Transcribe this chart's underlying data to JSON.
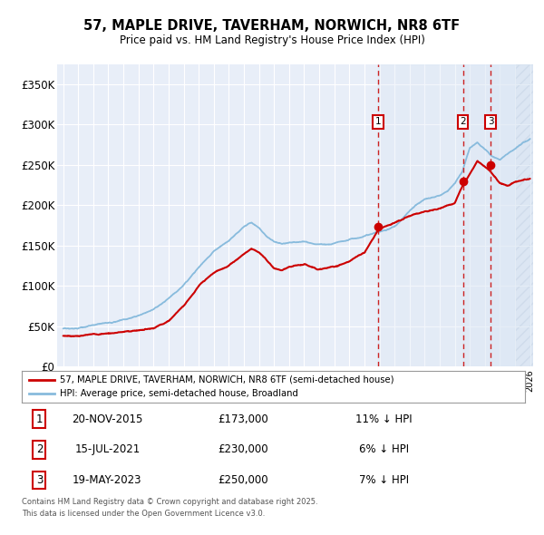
{
  "title": "57, MAPLE DRIVE, TAVERHAM, NORWICH, NR8 6TF",
  "subtitle": "Price paid vs. HM Land Registry's House Price Index (HPI)",
  "legend_line1": "57, MAPLE DRIVE, TAVERHAM, NORWICH, NR8 6TF (semi-detached house)",
  "legend_line2": "HPI: Average price, semi-detached house, Broadland",
  "footer1": "Contains HM Land Registry data © Crown copyright and database right 2025.",
  "footer2": "This data is licensed under the Open Government Licence v3.0.",
  "sale_color": "#cc0000",
  "hpi_color": "#88bbdd",
  "background_color": "#e8eef8",
  "hatch_bg_color": "#dde4f0",
  "transactions": [
    {
      "label": "1",
      "date": "20-NOV-2015",
      "price": 173000,
      "pct": "11%",
      "direction": "↓",
      "x_year": 2015.9
    },
    {
      "label": "2",
      "date": "15-JUL-2021",
      "price": 230000,
      "pct": "6%",
      "direction": "↓",
      "x_year": 2021.54
    },
    {
      "label": "3",
      "date": "19-MAY-2023",
      "price": 250000,
      "pct": "7%",
      "direction": "↓",
      "x_year": 2023.37
    }
  ],
  "ylim": [
    0,
    375000
  ],
  "xlim": [
    1994.6,
    2026.2
  ],
  "yticks": [
    0,
    50000,
    100000,
    150000,
    200000,
    250000,
    300000,
    350000
  ],
  "ytick_labels": [
    "£0",
    "£50K",
    "£100K",
    "£150K",
    "£200K",
    "£250K",
    "£300K",
    "£350K"
  ],
  "prop_anchors_x": [
    1995.0,
    1996.0,
    1997.0,
    1998.0,
    1999.0,
    2000.0,
    2001.0,
    2002.0,
    2003.0,
    2004.0,
    2005.0,
    2006.0,
    2007.0,
    2007.5,
    2008.0,
    2008.5,
    2009.0,
    2009.5,
    2010.0,
    2011.0,
    2012.0,
    2013.0,
    2014.0,
    2015.0,
    2015.9,
    2016.5,
    2017.0,
    2018.0,
    2019.0,
    2020.0,
    2021.0,
    2021.54,
    2022.0,
    2022.5,
    2023.37,
    2024.0,
    2024.5,
    2025.0,
    2025.5,
    2026.0
  ],
  "prop_anchors_y": [
    38000,
    38500,
    40000,
    42000,
    44000,
    46000,
    50000,
    60000,
    80000,
    105000,
    120000,
    130000,
    145000,
    152000,
    148000,
    138000,
    128000,
    125000,
    128000,
    130000,
    125000,
    128000,
    135000,
    145000,
    173000,
    180000,
    183000,
    190000,
    197000,
    200000,
    208000,
    230000,
    245000,
    262000,
    250000,
    235000,
    232000,
    238000,
    240000,
    242000
  ],
  "hpi_anchors_x": [
    1995.0,
    1996.0,
    1997.0,
    1998.0,
    1999.0,
    2000.0,
    2001.0,
    2002.0,
    2003.0,
    2004.0,
    2005.0,
    2006.0,
    2007.0,
    2007.5,
    2008.0,
    2008.5,
    2009.0,
    2009.5,
    2010.0,
    2011.0,
    2012.0,
    2013.0,
    2014.0,
    2015.0,
    2016.0,
    2017.0,
    2018.0,
    2019.0,
    2020.0,
    2020.5,
    2021.0,
    2021.5,
    2022.0,
    2022.5,
    2023.0,
    2023.5,
    2024.0,
    2024.5,
    2025.0,
    2025.5,
    2026.0
  ],
  "hpi_anchors_y": [
    47000,
    49000,
    52000,
    55000,
    58000,
    63000,
    70000,
    82000,
    98000,
    118000,
    138000,
    152000,
    170000,
    175000,
    168000,
    158000,
    152000,
    150000,
    152000,
    153000,
    150000,
    152000,
    158000,
    163000,
    168000,
    175000,
    195000,
    208000,
    212000,
    218000,
    228000,
    242000,
    272000,
    278000,
    270000,
    262000,
    258000,
    265000,
    272000,
    278000,
    282000
  ]
}
